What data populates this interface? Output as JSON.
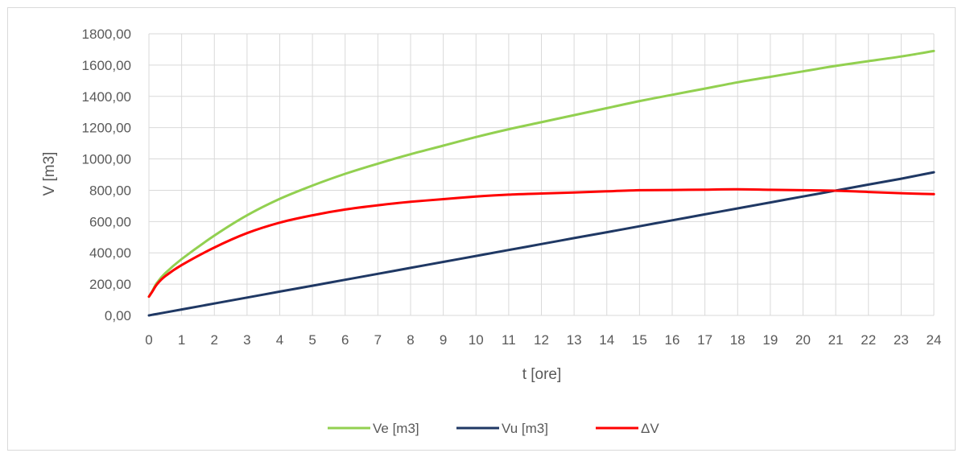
{
  "chart_data": {
    "type": "line",
    "xlabel": "t [ore]",
    "ylabel": "V [m3]",
    "xlim": [
      0,
      24
    ],
    "ylim": [
      0,
      1800
    ],
    "x_ticks": [
      "0",
      "1",
      "2",
      "3",
      "4",
      "5",
      "6",
      "7",
      "8",
      "9",
      "10",
      "11",
      "12",
      "13",
      "14",
      "15",
      "16",
      "17",
      "18",
      "19",
      "20",
      "21",
      "22",
      "23",
      "24"
    ],
    "y_ticks": [
      "0,00",
      "200,00",
      "400,00",
      "600,00",
      "800,00",
      "1000,00",
      "1200,00",
      "1400,00",
      "1600,00",
      "1800,00"
    ],
    "grid": true,
    "legend_position": "bottom",
    "x": [
      0,
      0.1,
      0.25,
      0.5,
      1,
      2,
      3,
      4,
      5,
      6,
      7,
      8,
      9,
      10,
      11,
      12,
      13,
      14,
      15,
      16,
      17,
      18,
      19,
      20,
      21,
      22,
      23,
      24
    ],
    "series": [
      {
        "name": "Ve [m3]",
        "color": "#92d050",
        "values": [
          120,
          155,
          210,
          270,
          360,
          510,
          640,
          745,
          830,
          905,
          970,
          1030,
          1085,
          1140,
          1190,
          1235,
          1280,
          1325,
          1370,
          1410,
          1450,
          1490,
          1525,
          1560,
          1595,
          1625,
          1655,
          1690
        ]
      },
      {
        "name": "Vu [m3]",
        "color": "#1f3864",
        "values": [
          0,
          4,
          10,
          19,
          38,
          76,
          114,
          152,
          190,
          228,
          266,
          304,
          342,
          380,
          418,
          456,
          494,
          532,
          570,
          608,
          646,
          684,
          722,
          760,
          798,
          836,
          874,
          915
        ]
      },
      {
        "name": "ΔV",
        "color": "#ff0000",
        "values": [
          120,
          151,
          200,
          251,
          322,
          434,
          526,
          593,
          640,
          677,
          704,
          726,
          743,
          760,
          772,
          779,
          786,
          793,
          800,
          802,
          804,
          806,
          803,
          800,
          797,
          789,
          781,
          775
        ]
      }
    ]
  }
}
